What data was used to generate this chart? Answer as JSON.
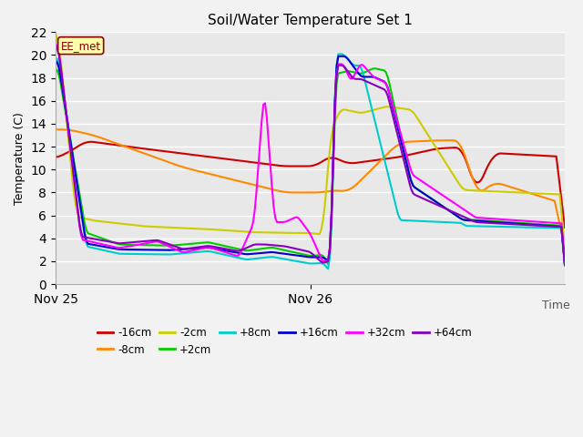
{
  "title": "Soil/Water Temperature Set 1",
  "ylabel": "Temperature (C)",
  "xlabel": "Time",
  "annotation": "EE_met",
  "ylim": [
    0,
    22
  ],
  "yticks": [
    0,
    2,
    4,
    6,
    8,
    10,
    12,
    14,
    16,
    18,
    20,
    22
  ],
  "xtick_positions": [
    0,
    1
  ],
  "xtick_labels": [
    "Nov 25",
    "Nov 26"
  ],
  "fig_bg": "#f2f2f2",
  "axes_bg": "#e8e8e8",
  "series": [
    {
      "label": "-16cm",
      "color": "#cc0000"
    },
    {
      "label": "-8cm",
      "color": "#ff8800"
    },
    {
      "label": "-2cm",
      "color": "#cccc00"
    },
    {
      "label": "+2cm",
      "color": "#00cc00"
    },
    {
      "label": "+8cm",
      "color": "#00cccc"
    },
    {
      "label": "+16cm",
      "color": "#0000cc"
    },
    {
      "label": "+32cm",
      "color": "#ff00ff"
    },
    {
      "label": "+64cm",
      "color": "#8800bb"
    }
  ],
  "legend_ncol": 6,
  "grid_color": "#ffffff",
  "lw": 1.5
}
